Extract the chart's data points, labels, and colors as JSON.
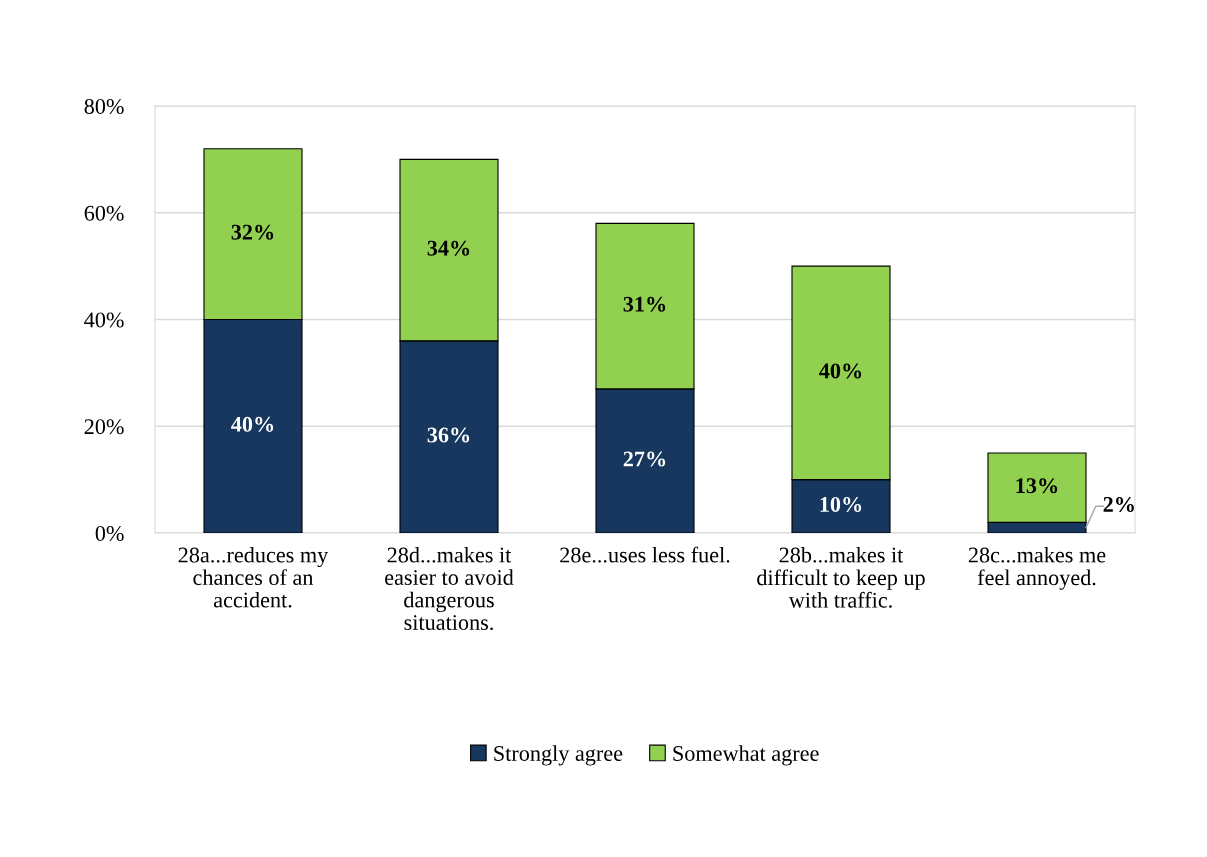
{
  "chart_data": {
    "type": "bar",
    "stacked": true,
    "categories": [
      "28a...reduces my chances of an accident.",
      "28d...makes it easier to avoid dangerous situations.",
      "28e...uses less fuel.",
      "28b...makes it difficult to keep up with traffic.",
      "28c...makes me feel annoyed."
    ],
    "series": [
      {
        "name": "Strongly agree",
        "color": "#17375e",
        "values": [
          40,
          36,
          27,
          10,
          2
        ],
        "value_labels": [
          "40%",
          "36%",
          "27%",
          "10%",
          "2%"
        ]
      },
      {
        "name": "Somewhat agree",
        "color": "#92d050",
        "values": [
          32,
          34,
          31,
          40,
          13
        ],
        "value_labels": [
          "32%",
          "34%",
          "31%",
          "40%",
          "13%"
        ]
      }
    ],
    "ylim": [
      0,
      80
    ],
    "yticks": [
      {
        "value": 0,
        "label": "0%"
      },
      {
        "value": 20,
        "label": "20%"
      },
      {
        "value": 40,
        "label": "40%"
      },
      {
        "value": 60,
        "label": "60%"
      },
      {
        "value": 80,
        "label": "80%"
      }
    ],
    "grid": "y",
    "legend": "bottom"
  }
}
